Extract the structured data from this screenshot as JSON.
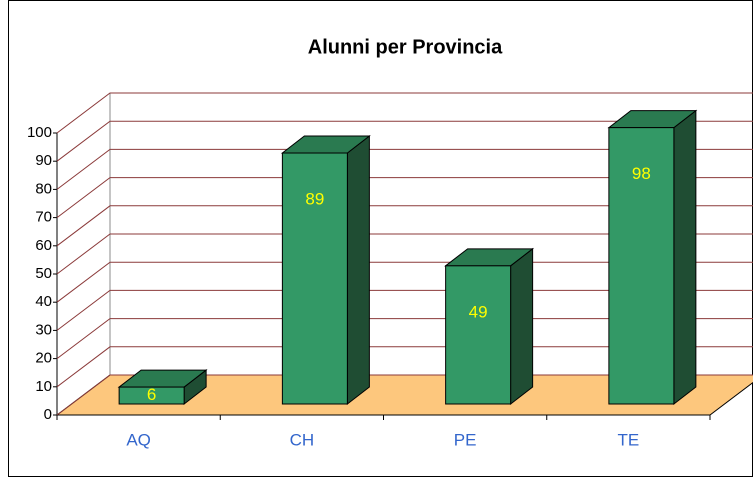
{
  "chart_data": {
    "type": "bar",
    "title": "Alunni per Provincia",
    "categories": [
      "AQ",
      "CH",
      "PE",
      "TE"
    ],
    "values": [
      6,
      89,
      49,
      98
    ],
    "color": "#339966",
    "floor_color": "#fdc77d",
    "grid_color": "#8b3a3a",
    "category_label_color": "#3366cc",
    "value_label_color": "#ffff00",
    "ylim": [
      0,
      100
    ],
    "yticks": [
      0,
      10,
      20,
      30,
      40,
      50,
      60,
      70,
      80,
      90,
      100
    ],
    "grid": true
  }
}
